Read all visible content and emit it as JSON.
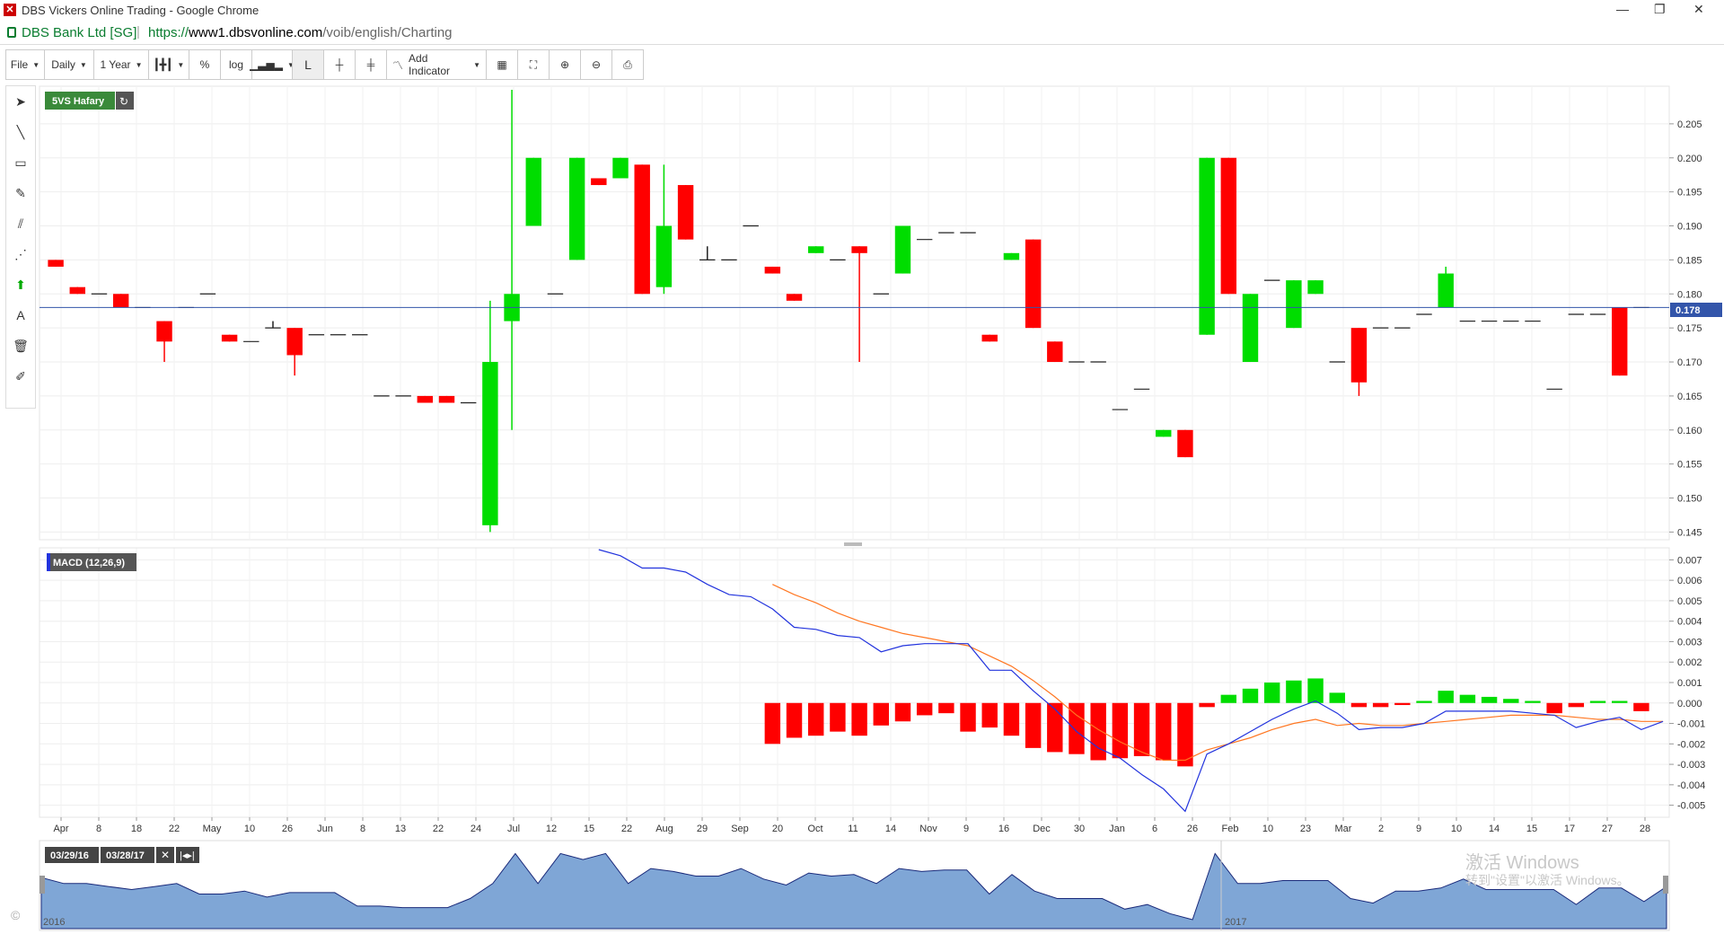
{
  "window": {
    "title": "DBS Vickers Online Trading - Google Chrome",
    "site_name": "DBS Bank Ltd [SG]",
    "url_scheme": "https://",
    "url_host": "www1.dbsvonline.com",
    "url_path": "/voib/english/Charting"
  },
  "toolbar": {
    "file": "File",
    "interval": "Daily",
    "range": "1 Year",
    "percent": "%",
    "log": "log",
    "line_label": "L",
    "add_indicator": "Add Indicator"
  },
  "colors": {
    "up": "#00dd00",
    "down": "#ff0000",
    "macd": "#2233dd",
    "signal": "#ff7722",
    "last_line": "#3355aa",
    "nav_fill": "#7fa6d6"
  },
  "price_panel": {
    "label": "5VS Hafary",
    "last_price": "0.178"
  },
  "macd_panel": {
    "label": "MACD (12,26,9)"
  },
  "navigator": {
    "from_date": "03/29/16",
    "to_date": "03/28/17",
    "year_2016": "2016",
    "year_2017": "2017"
  },
  "watermark": {
    "line1": "激活 Windows",
    "line2": "转到\"设置\"以激活 Windows。"
  },
  "copyright": "©",
  "chart_data": [
    {
      "type": "candlestick",
      "title": "5VS Hafary",
      "ylim": [
        0.144,
        0.21
      ],
      "y_ticks": [
        "0.145",
        "0.150",
        "0.155",
        "0.160",
        "0.165",
        "0.170",
        "0.175",
        "0.180",
        "0.185",
        "0.190",
        "0.195",
        "0.200",
        "0.205"
      ],
      "x_ticks": [
        "Apr",
        "8",
        "18",
        "22",
        "May",
        "10",
        "26",
        "Jun",
        "8",
        "13",
        "22",
        "24",
        "Jul",
        "12",
        "15",
        "22",
        "Aug",
        "29",
        "Sep",
        "20",
        "Oct",
        "11",
        "14",
        "Nov",
        "9",
        "16",
        "Dec",
        "30",
        "Jan",
        "6",
        "26",
        "Feb",
        "10",
        "23",
        "Mar",
        "2",
        "9",
        "10",
        "14",
        "15",
        "17",
        "27",
        "28"
      ],
      "last": 0.178,
      "candles": [
        {
          "o": 0.185,
          "h": 0.185,
          "l": 0.184,
          "c": 0.184
        },
        {
          "o": 0.181,
          "h": 0.181,
          "l": 0.18,
          "c": 0.18
        },
        {
          "o": 0.18,
          "h": 0.18,
          "l": 0.18,
          "c": 0.18
        },
        {
          "o": 0.18,
          "h": 0.18,
          "l": 0.178,
          "c": 0.178
        },
        {
          "o": 0.178,
          "h": 0.178,
          "l": 0.178,
          "c": 0.178
        },
        {
          "o": 0.176,
          "h": 0.176,
          "l": 0.17,
          "c": 0.173
        },
        {
          "o": 0.178,
          "h": 0.178,
          "l": 0.178,
          "c": 0.178
        },
        {
          "o": 0.18,
          "h": 0.18,
          "l": 0.18,
          "c": 0.18
        },
        {
          "o": 0.174,
          "h": 0.174,
          "l": 0.173,
          "c": 0.173
        },
        {
          "o": 0.173,
          "h": 0.173,
          "l": 0.173,
          "c": 0.173
        },
        {
          "o": 0.175,
          "h": 0.176,
          "l": 0.175,
          "c": 0.175
        },
        {
          "o": 0.175,
          "h": 0.175,
          "l": 0.168,
          "c": 0.171
        },
        {
          "o": 0.174,
          "h": 0.174,
          "l": 0.174,
          "c": 0.174
        },
        {
          "o": 0.174,
          "h": 0.174,
          "l": 0.174,
          "c": 0.174
        },
        {
          "o": 0.174,
          "h": 0.174,
          "l": 0.174,
          "c": 0.174
        },
        {
          "o": 0.165,
          "h": 0.165,
          "l": 0.165,
          "c": 0.165
        },
        {
          "o": 0.165,
          "h": 0.165,
          "l": 0.165,
          "c": 0.165
        },
        {
          "o": 0.165,
          "h": 0.165,
          "l": 0.164,
          "c": 0.164
        },
        {
          "o": 0.165,
          "h": 0.165,
          "l": 0.164,
          "c": 0.164
        },
        {
          "o": 0.164,
          "h": 0.164,
          "l": 0.164,
          "c": 0.164
        },
        {
          "o": 0.146,
          "h": 0.179,
          "l": 0.145,
          "c": 0.17
        },
        {
          "o": 0.176,
          "h": 0.21,
          "l": 0.16,
          "c": 0.18
        },
        {
          "o": 0.19,
          "h": 0.2,
          "l": 0.19,
          "c": 0.2
        },
        {
          "o": 0.18,
          "h": 0.18,
          "l": 0.18,
          "c": 0.18
        },
        {
          "o": 0.185,
          "h": 0.2,
          "l": 0.185,
          "c": 0.2
        },
        {
          "o": 0.197,
          "h": 0.197,
          "l": 0.196,
          "c": 0.196
        },
        {
          "o": 0.197,
          "h": 0.2,
          "l": 0.197,
          "c": 0.2
        },
        {
          "o": 0.199,
          "h": 0.199,
          "l": 0.18,
          "c": 0.18
        },
        {
          "o": 0.181,
          "h": 0.199,
          "l": 0.18,
          "c": 0.19
        },
        {
          "o": 0.196,
          "h": 0.196,
          "l": 0.188,
          "c": 0.188
        },
        {
          "o": 0.185,
          "h": 0.187,
          "l": 0.185,
          "c": 0.185
        },
        {
          "o": 0.185,
          "h": 0.185,
          "l": 0.185,
          "c": 0.185
        },
        {
          "o": 0.19,
          "h": 0.19,
          "l": 0.19,
          "c": 0.19
        },
        {
          "o": 0.184,
          "h": 0.184,
          "l": 0.183,
          "c": 0.183
        },
        {
          "o": 0.18,
          "h": 0.18,
          "l": 0.179,
          "c": 0.179
        },
        {
          "o": 0.186,
          "h": 0.187,
          "l": 0.186,
          "c": 0.187
        },
        {
          "o": 0.185,
          "h": 0.185,
          "l": 0.185,
          "c": 0.185
        },
        {
          "o": 0.187,
          "h": 0.187,
          "l": 0.17,
          "c": 0.186
        },
        {
          "o": 0.18,
          "h": 0.18,
          "l": 0.18,
          "c": 0.18
        },
        {
          "o": 0.183,
          "h": 0.19,
          "l": 0.183,
          "c": 0.19
        },
        {
          "o": 0.188,
          "h": 0.188,
          "l": 0.188,
          "c": 0.188
        },
        {
          "o": 0.189,
          "h": 0.189,
          "l": 0.189,
          "c": 0.189
        },
        {
          "o": 0.189,
          "h": 0.189,
          "l": 0.189,
          "c": 0.189
        },
        {
          "o": 0.174,
          "h": 0.174,
          "l": 0.173,
          "c": 0.173
        },
        {
          "o": 0.185,
          "h": 0.186,
          "l": 0.185,
          "c": 0.186
        },
        {
          "o": 0.188,
          "h": 0.188,
          "l": 0.175,
          "c": 0.175
        },
        {
          "o": 0.173,
          "h": 0.173,
          "l": 0.17,
          "c": 0.17
        },
        {
          "o": 0.17,
          "h": 0.17,
          "l": 0.17,
          "c": 0.17
        },
        {
          "o": 0.17,
          "h": 0.17,
          "l": 0.17,
          "c": 0.17
        },
        {
          "o": 0.163,
          "h": 0.163,
          "l": 0.163,
          "c": 0.163
        },
        {
          "o": 0.166,
          "h": 0.166,
          "l": 0.166,
          "c": 0.166
        },
        {
          "o": 0.159,
          "h": 0.16,
          "l": 0.159,
          "c": 0.16
        },
        {
          "o": 0.16,
          "h": 0.16,
          "l": 0.156,
          "c": 0.156
        },
        {
          "o": 0.174,
          "h": 0.2,
          "l": 0.174,
          "c": 0.2
        },
        {
          "o": 0.2,
          "h": 0.2,
          "l": 0.18,
          "c": 0.18
        },
        {
          "o": 0.17,
          "h": 0.18,
          "l": 0.17,
          "c": 0.18
        },
        {
          "o": 0.182,
          "h": 0.182,
          "l": 0.182,
          "c": 0.182
        },
        {
          "o": 0.175,
          "h": 0.182,
          "l": 0.175,
          "c": 0.182
        },
        {
          "o": 0.18,
          "h": 0.182,
          "l": 0.18,
          "c": 0.182
        },
        {
          "o": 0.17,
          "h": 0.17,
          "l": 0.17,
          "c": 0.17
        },
        {
          "o": 0.175,
          "h": 0.175,
          "l": 0.165,
          "c": 0.167
        },
        {
          "o": 0.175,
          "h": 0.175,
          "l": 0.175,
          "c": 0.175
        },
        {
          "o": 0.175,
          "h": 0.175,
          "l": 0.175,
          "c": 0.175
        },
        {
          "o": 0.177,
          "h": 0.177,
          "l": 0.177,
          "c": 0.177
        },
        {
          "o": 0.178,
          "h": 0.184,
          "l": 0.178,
          "c": 0.183
        },
        {
          "o": 0.176,
          "h": 0.176,
          "l": 0.176,
          "c": 0.176
        },
        {
          "o": 0.176,
          "h": 0.176,
          "l": 0.176,
          "c": 0.176
        },
        {
          "o": 0.176,
          "h": 0.176,
          "l": 0.176,
          "c": 0.176
        },
        {
          "o": 0.176,
          "h": 0.176,
          "l": 0.176,
          "c": 0.176
        },
        {
          "o": 0.166,
          "h": 0.166,
          "l": 0.166,
          "c": 0.166
        },
        {
          "o": 0.177,
          "h": 0.177,
          "l": 0.177,
          "c": 0.177
        },
        {
          "o": 0.177,
          "h": 0.177,
          "l": 0.177,
          "c": 0.177
        },
        {
          "o": 0.178,
          "h": 0.178,
          "l": 0.168,
          "c": 0.168
        },
        {
          "o": 0.178,
          "h": 0.178,
          "l": 0.178,
          "c": 0.178
        }
      ]
    },
    {
      "type": "macd",
      "title": "MACD (12,26,9)",
      "ylim": [
        -0.0055,
        0.0075
      ],
      "y_ticks": [
        "0.007",
        "0.006",
        "0.005",
        "0.004",
        "0.003",
        "0.002",
        "0.001",
        "0.000",
        "-0.001",
        "-0.002",
        "-0.003",
        "-0.004",
        "-0.005"
      ],
      "macd_points": [
        [
          25,
          0.0078
        ],
        [
          26,
          0.0072
        ],
        [
          27,
          0.0066
        ],
        [
          28,
          0.0066
        ],
        [
          29,
          0.0064
        ],
        [
          30,
          0.0058
        ],
        [
          31,
          0.0053
        ],
        [
          32,
          0.0052
        ],
        [
          33,
          0.0046
        ],
        [
          34,
          0.0037
        ],
        [
          35,
          0.0036
        ],
        [
          36,
          0.0033
        ],
        [
          37,
          0.0032
        ],
        [
          38,
          0.0025
        ],
        [
          39,
          0.0028
        ],
        [
          40,
          0.0029
        ],
        [
          41,
          0.0029
        ],
        [
          42,
          0.0029
        ],
        [
          43,
          0.0016
        ],
        [
          44,
          0.0016
        ],
        [
          45,
          0.0006
        ],
        [
          46,
          -0.0003
        ],
        [
          47,
          -0.0014
        ],
        [
          48,
          -0.0022
        ],
        [
          49,
          -0.0027
        ],
        [
          50,
          -0.0035
        ],
        [
          51,
          -0.0042
        ],
        [
          52,
          -0.0053
        ],
        [
          53,
          -0.0025
        ],
        [
          54,
          -0.002
        ],
        [
          55,
          -0.0014
        ],
        [
          56,
          -0.0008
        ],
        [
          57,
          -0.0003
        ],
        [
          58,
          0.0001
        ],
        [
          59,
          -0.0005
        ],
        [
          60,
          -0.0013
        ],
        [
          61,
          -0.0012
        ],
        [
          62,
          -0.0012
        ],
        [
          63,
          -0.001
        ],
        [
          64,
          -0.0004
        ],
        [
          65,
          -0.0004
        ],
        [
          66,
          -0.0004
        ],
        [
          67,
          -0.0004
        ],
        [
          68,
          -0.0005
        ],
        [
          69,
          -0.0006
        ],
        [
          70,
          -0.0012
        ],
        [
          71,
          -0.0009
        ],
        [
          72,
          -0.0007
        ],
        [
          73,
          -0.0013
        ],
        [
          74,
          -0.0009
        ]
      ],
      "signal_points": [
        [
          33,
          0.0058
        ],
        [
          34,
          0.0053
        ],
        [
          35,
          0.0049
        ],
        [
          36,
          0.0044
        ],
        [
          37,
          0.004
        ],
        [
          38,
          0.0037
        ],
        [
          39,
          0.0034
        ],
        [
          40,
          0.0032
        ],
        [
          41,
          0.003
        ],
        [
          42,
          0.0028
        ],
        [
          43,
          0.0023
        ],
        [
          44,
          0.0018
        ],
        [
          45,
          0.0011
        ],
        [
          46,
          0.0003
        ],
        [
          47,
          -0.0006
        ],
        [
          48,
          -0.0013
        ],
        [
          49,
          -0.0019
        ],
        [
          50,
          -0.0024
        ],
        [
          51,
          -0.0028
        ],
        [
          52,
          -0.0028
        ],
        [
          53,
          -0.0023
        ],
        [
          54,
          -0.002
        ],
        [
          55,
          -0.0017
        ],
        [
          56,
          -0.0013
        ],
        [
          57,
          -0.001
        ],
        [
          58,
          -0.0008
        ],
        [
          59,
          -0.0011
        ],
        [
          60,
          -0.001
        ],
        [
          61,
          -0.0011
        ],
        [
          62,
          -0.0011
        ],
        [
          63,
          -0.001
        ],
        [
          64,
          -0.0009
        ],
        [
          65,
          -0.0008
        ],
        [
          66,
          -0.0007
        ],
        [
          67,
          -0.0006
        ],
        [
          68,
          -0.0006
        ],
        [
          69,
          -0.0006
        ],
        [
          70,
          -0.0007
        ],
        [
          71,
          -0.0008
        ],
        [
          72,
          -0.0008
        ],
        [
          73,
          -0.0009
        ],
        [
          74,
          -0.0009
        ]
      ],
      "histogram_points": [
        [
          33,
          -0.002
        ],
        [
          34,
          -0.0017
        ],
        [
          35,
          -0.0016
        ],
        [
          36,
          -0.0014
        ],
        [
          37,
          -0.0016
        ],
        [
          38,
          -0.0011
        ],
        [
          39,
          -0.0009
        ],
        [
          40,
          -0.0006
        ],
        [
          41,
          -0.0005
        ],
        [
          42,
          -0.0014
        ],
        [
          43,
          -0.0012
        ],
        [
          44,
          -0.0016
        ],
        [
          45,
          -0.0022
        ],
        [
          46,
          -0.0024
        ],
        [
          47,
          -0.0025
        ],
        [
          48,
          -0.0028
        ],
        [
          49,
          -0.0027
        ],
        [
          50,
          -0.0026
        ],
        [
          51,
          -0.0028
        ],
        [
          52,
          -0.0031
        ],
        [
          53,
          -0.0002
        ],
        [
          54,
          0.0004
        ],
        [
          55,
          0.0007
        ],
        [
          56,
          0.001
        ],
        [
          57,
          0.0011
        ],
        [
          58,
          0.0012
        ],
        [
          59,
          0.0005
        ],
        [
          60,
          -0.0002
        ],
        [
          61,
          -0.0002
        ],
        [
          62,
          -0.0001
        ],
        [
          63,
          0.0001
        ],
        [
          64,
          0.0006
        ],
        [
          65,
          0.0004
        ],
        [
          66,
          0.0003
        ],
        [
          67,
          0.0002
        ],
        [
          68,
          0.0001
        ],
        [
          69,
          -0.0005
        ],
        [
          70,
          -0.0002
        ],
        [
          71,
          0.0001
        ],
        [
          72,
          0.0001
        ],
        [
          73,
          -0.0004
        ]
      ]
    },
    {
      "type": "area",
      "title": "navigator",
      "values": [
        0.184,
        0.18,
        0.18,
        0.178,
        0.176,
        0.178,
        0.18,
        0.173,
        0.173,
        0.175,
        0.171,
        0.174,
        0.174,
        0.174,
        0.165,
        0.165,
        0.164,
        0.164,
        0.164,
        0.17,
        0.18,
        0.2,
        0.18,
        0.2,
        0.196,
        0.2,
        0.18,
        0.19,
        0.188,
        0.185,
        0.185,
        0.19,
        0.183,
        0.179,
        0.187,
        0.185,
        0.186,
        0.18,
        0.19,
        0.188,
        0.189,
        0.189,
        0.173,
        0.186,
        0.175,
        0.17,
        0.17,
        0.17,
        0.163,
        0.166,
        0.16,
        0.156,
        0.2,
        0.18,
        0.18,
        0.182,
        0.182,
        0.182,
        0.17,
        0.167,
        0.175,
        0.175,
        0.177,
        0.183,
        0.176,
        0.176,
        0.176,
        0.176,
        0.166,
        0.177,
        0.177,
        0.168,
        0.178
      ]
    }
  ]
}
